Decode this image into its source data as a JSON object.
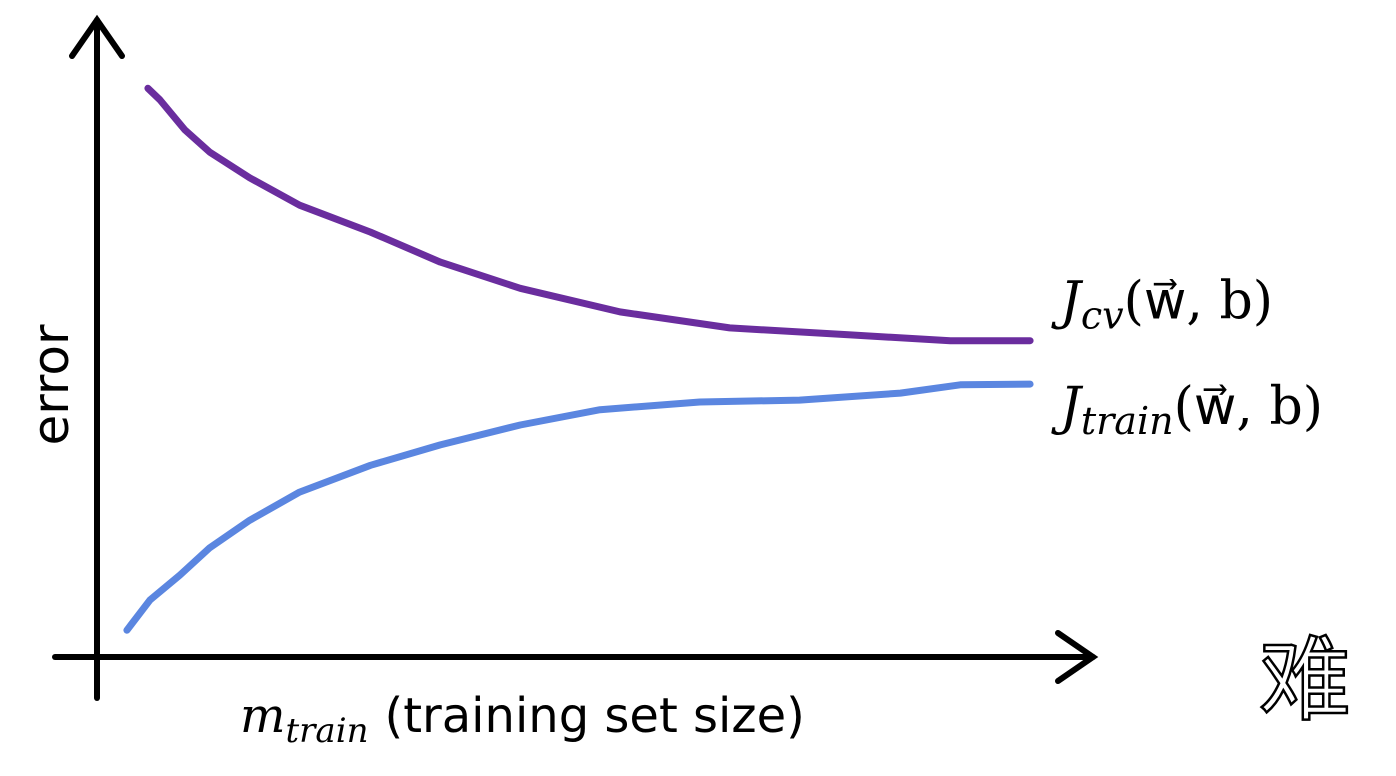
{
  "chart_data": {
    "type": "line",
    "y_label": "error",
    "x_label_parts": {
      "var": "m",
      "sub": "train",
      "text": "(training set size)"
    },
    "xlim": [
      0,
      100
    ],
    "ylim": [
      0,
      100
    ],
    "series": [
      {
        "label_parts": {
          "base": "J",
          "sub": "cv",
          "args": "(w⃗, b)"
        },
        "color": "#6a2d9e",
        "x": [
          5.1,
          6.3,
          8.8,
          11.3,
          15.3,
          20.3,
          27.4,
          34.4,
          42.4,
          52.4,
          63.4,
          75.5,
          85.5,
          93.5
        ],
        "values": [
          89.0,
          87.2,
          82.5,
          79.0,
          75.0,
          70.7,
          66.5,
          61.8,
          57.7,
          54.0,
          51.5,
          50.4,
          49.5,
          49.5
        ]
      },
      {
        "label_parts": {
          "base": "J",
          "sub": "train",
          "args": "(w⃗, b)"
        },
        "color": "#5b86e0",
        "x": [
          3.0,
          5.3,
          8.3,
          11.3,
          15.3,
          20.3,
          27.4,
          34.4,
          42.4,
          50.4,
          60.4,
          70.4,
          80.5,
          86.5,
          93.5
        ],
        "values": [
          4.2,
          8.9,
          12.8,
          17.1,
          21.4,
          25.8,
          30.0,
          33.2,
          36.3,
          38.7,
          39.9,
          40.2,
          41.3,
          42.6,
          42.7
        ]
      }
    ],
    "overlay_text": "难"
  }
}
